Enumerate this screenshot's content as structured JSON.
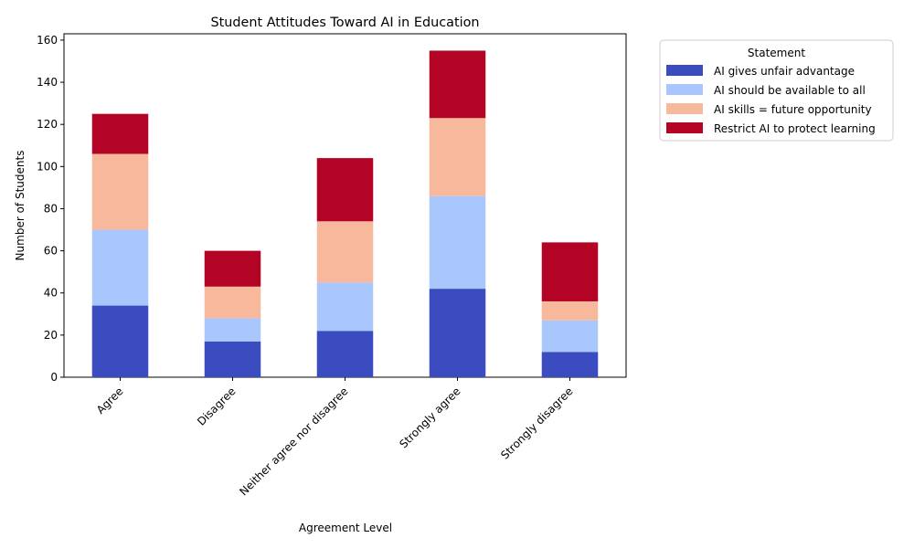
{
  "chart_data": {
    "type": "bar",
    "stacked": true,
    "title": "Student Attitudes Toward AI in Education",
    "xlabel": "Agreement Level",
    "ylabel": "Number of Students",
    "categories": [
      "Agree",
      "Disagree",
      "Neither agree nor disagree",
      "Strongly agree",
      "Strongly disagree"
    ],
    "ylim": [
      0,
      163
    ],
    "yticks": [
      "0",
      "20",
      "40",
      "60",
      "80",
      "100",
      "120",
      "140",
      "160"
    ],
    "grid": false,
    "legend": {
      "title": "Statement",
      "placement": "outside top-right"
    },
    "series": [
      {
        "name": "AI gives unfair advantage",
        "color": "#3b4cc0",
        "values": [
          34,
          17,
          22,
          42,
          12
        ]
      },
      {
        "name": "AI should be available to all",
        "color": "#aac7fd",
        "values": [
          36,
          11,
          23,
          44,
          15
        ]
      },
      {
        "name": "AI skills = future opportunity",
        "color": "#f7b89c",
        "values": [
          36,
          15,
          29,
          37,
          9
        ]
      },
      {
        "name": "Restrict AI to protect learning",
        "color": "#b40426",
        "values": [
          19,
          17,
          30,
          32,
          28
        ]
      }
    ]
  }
}
